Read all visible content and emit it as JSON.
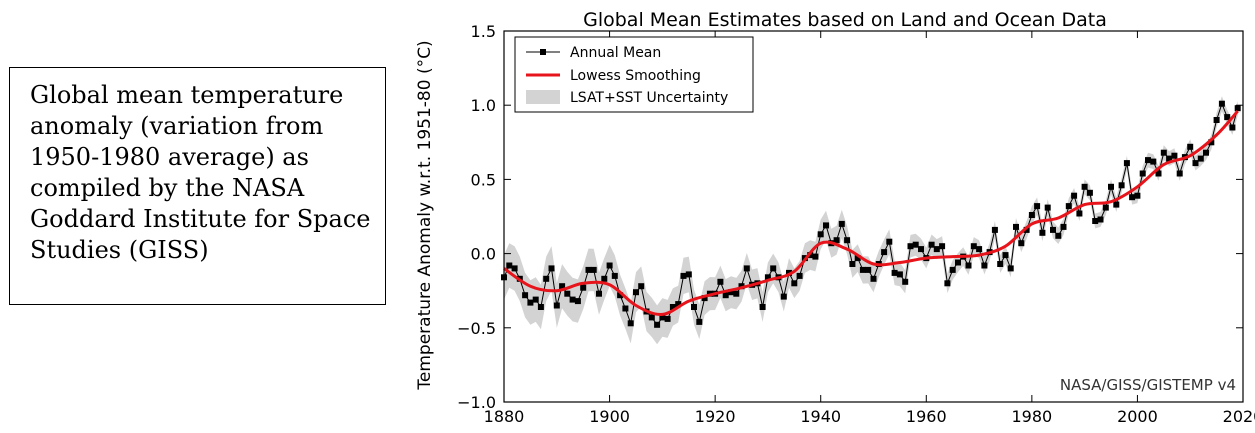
{
  "caption": {
    "text": "Global mean temperature anomaly (variation from 1950-1980 average) as compiled by the NASA Goddard Institute for Space Studies (GISS)"
  },
  "chart_data": {
    "type": "line",
    "title": "Global Mean Estimates based on Land and Ocean Data",
    "xlabel": "",
    "ylabel": "Temperature Anomaly w.r.t. 1951-80 (°C)",
    "xlim": [
      1880,
      2020
    ],
    "ylim": [
      -1.0,
      1.5
    ],
    "xticks": [
      1880,
      1900,
      1920,
      1940,
      1960,
      1980,
      2000,
      2020
    ],
    "yticks": [
      -1.0,
      -0.5,
      0.0,
      0.5,
      1.0,
      1.5
    ],
    "ytick_labels": [
      "−1.0",
      "−0.5",
      "0.0",
      "0.5",
      "1.0",
      "1.5"
    ],
    "grid": false,
    "legend_position": "top-left",
    "annotation": "NASA/GISS/GISTEMP v4",
    "colors": {
      "annual": "#000000",
      "lowess": "#e8141b",
      "uncertainty": "#d3d3d3"
    },
    "series": [
      {
        "name": "Annual Mean",
        "marker": "square",
        "x": [
          1880,
          1881,
          1882,
          1883,
          1884,
          1885,
          1886,
          1887,
          1888,
          1889,
          1890,
          1891,
          1892,
          1893,
          1894,
          1895,
          1896,
          1897,
          1898,
          1899,
          1900,
          1901,
          1902,
          1903,
          1904,
          1905,
          1906,
          1907,
          1908,
          1909,
          1910,
          1911,
          1912,
          1913,
          1914,
          1915,
          1916,
          1917,
          1918,
          1919,
          1920,
          1921,
          1922,
          1923,
          1924,
          1925,
          1926,
          1927,
          1928,
          1929,
          1930,
          1931,
          1932,
          1933,
          1934,
          1935,
          1936,
          1937,
          1938,
          1939,
          1940,
          1941,
          1942,
          1943,
          1944,
          1945,
          1946,
          1947,
          1948,
          1949,
          1950,
          1951,
          1952,
          1953,
          1954,
          1955,
          1956,
          1957,
          1958,
          1959,
          1960,
          1961,
          1962,
          1963,
          1964,
          1965,
          1966,
          1967,
          1968,
          1969,
          1970,
          1971,
          1972,
          1973,
          1974,
          1975,
          1976,
          1977,
          1978,
          1979,
          1980,
          1981,
          1982,
          1983,
          1984,
          1985,
          1986,
          1987,
          1988,
          1989,
          1990,
          1991,
          1992,
          1993,
          1994,
          1995,
          1996,
          1997,
          1998,
          1999,
          2000,
          2001,
          2002,
          2003,
          2004,
          2005,
          2006,
          2007,
          2008,
          2009,
          2010,
          2011,
          2012,
          2013,
          2014,
          2015,
          2016,
          2017,
          2018,
          2019
        ],
        "values": [
          -0.16,
          -0.08,
          -0.1,
          -0.17,
          -0.28,
          -0.33,
          -0.31,
          -0.36,
          -0.17,
          -0.1,
          -0.35,
          -0.22,
          -0.27,
          -0.31,
          -0.32,
          -0.23,
          -0.11,
          -0.11,
          -0.27,
          -0.17,
          -0.08,
          -0.15,
          -0.28,
          -0.37,
          -0.47,
          -0.26,
          -0.22,
          -0.39,
          -0.43,
          -0.48,
          -0.43,
          -0.44,
          -0.36,
          -0.34,
          -0.15,
          -0.14,
          -0.36,
          -0.46,
          -0.3,
          -0.27,
          -0.27,
          -0.19,
          -0.28,
          -0.26,
          -0.27,
          -0.22,
          -0.1,
          -0.21,
          -0.2,
          -0.36,
          -0.16,
          -0.1,
          -0.16,
          -0.29,
          -0.13,
          -0.2,
          -0.15,
          -0.03,
          -0.01,
          -0.02,
          0.13,
          0.19,
          0.07,
          0.09,
          0.2,
          0.09,
          -0.07,
          -0.03,
          -0.11,
          -0.11,
          -0.17,
          -0.07,
          0.01,
          0.08,
          -0.13,
          -0.14,
          -0.19,
          0.05,
          0.06,
          0.03,
          -0.03,
          0.06,
          0.03,
          0.05,
          -0.2,
          -0.11,
          -0.06,
          -0.02,
          -0.08,
          0.05,
          0.03,
          -0.08,
          0.01,
          0.16,
          -0.07,
          -0.01,
          -0.1,
          0.18,
          0.07,
          0.16,
          0.26,
          0.32,
          0.14,
          0.31,
          0.16,
          0.12,
          0.18,
          0.32,
          0.39,
          0.27,
          0.45,
          0.41,
          0.22,
          0.23,
          0.31,
          0.45,
          0.33,
          0.46,
          0.61,
          0.38,
          0.39,
          0.54,
          0.63,
          0.62,
          0.54,
          0.68,
          0.64,
          0.66,
          0.54,
          0.65,
          0.72,
          0.61,
          0.64,
          0.68,
          0.75,
          0.9,
          1.01,
          0.92,
          0.85,
          0.98
        ]
      },
      {
        "name": "Lowess Smoothing",
        "x": [
          1880,
          1885,
          1890,
          1895,
          1900,
          1905,
          1910,
          1915,
          1920,
          1925,
          1930,
          1935,
          1940,
          1945,
          1950,
          1955,
          1960,
          1965,
          1970,
          1975,
          1980,
          1985,
          1990,
          1995,
          2000,
          2005,
          2010,
          2015,
          2019
        ],
        "values": [
          -0.1,
          -0.22,
          -0.25,
          -0.2,
          -0.21,
          -0.35,
          -0.41,
          -0.32,
          -0.27,
          -0.23,
          -0.18,
          -0.12,
          0.07,
          0.03,
          -0.07,
          -0.06,
          -0.03,
          -0.02,
          -0.01,
          0.05,
          0.2,
          0.24,
          0.33,
          0.35,
          0.45,
          0.6,
          0.66,
          0.8,
          0.96
        ]
      },
      {
        "name": "LSAT+SST Uncertainty",
        "type": "band",
        "x": [
          1880,
          1890,
          1900,
          1910,
          1920,
          1930,
          1940,
          1950,
          1960,
          1970,
          1980,
          1990,
          2000,
          2010,
          2019
        ],
        "half_width": [
          0.15,
          0.15,
          0.14,
          0.13,
          0.11,
          0.1,
          0.1,
          0.09,
          0.07,
          0.06,
          0.06,
          0.05,
          0.05,
          0.05,
          0.05
        ]
      }
    ]
  }
}
